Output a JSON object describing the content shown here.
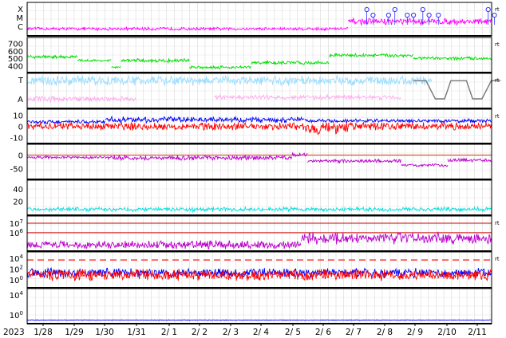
{
  "chart_data": {
    "type": "line",
    "x_start_label": "2023",
    "x_ticks": [
      "1/28",
      "1/29",
      "1/30",
      "1/31",
      "2/ 1",
      "2/ 2",
      "2/ 3",
      "2/ 4",
      "2/ 5",
      "2/ 6",
      "2/ 7",
      "2/ 8",
      "2/ 9",
      "2/10",
      "2/11"
    ],
    "x_range_days": [
      0,
      15.2
    ],
    "side_tag": "rt",
    "colors": {
      "magenta": "#ff00ff",
      "green": "#00dd00",
      "lightblue": "#99ddff",
      "pink": "#ffaaee",
      "gray": "#777777",
      "blue": "#0000ff",
      "red": "#ff0000",
      "purple": "#bb00cc",
      "cyan": "#00dddd",
      "darkred": "#cc0000",
      "flare_marker": "#3333ff"
    },
    "panels": [
      {
        "id": "xray_class",
        "y_labels": [
          "X",
          "M",
          "C"
        ],
        "tag": true,
        "series": [
          {
            "color_key": "magenta",
            "segments": [
              [
                0,
                10.3,
                0.18,
                0.06
              ],
              [
                10.3,
                15.2,
                0.42,
                0.12
              ]
            ]
          }
        ],
        "flare_markers_days": [
          10.9,
          11.1,
          11.6,
          11.8,
          12.2,
          12.4,
          12.7,
          12.9,
          13.2,
          14.8,
          15.0
        ]
      },
      {
        "id": "solar_wind_speed",
        "y_ticks": [
          700,
          600,
          500,
          400
        ],
        "ylim": [
          330,
          760
        ],
        "tag": true,
        "series": [
          {
            "color_key": "green",
            "segments": [
              [
                0,
                1.6,
                520,
                25
              ],
              [
                1.6,
                2.7,
                470,
                20
              ],
              [
                2.7,
                3.0,
                380,
                15
              ],
              [
                3.0,
                5.2,
                470,
                30
              ],
              [
                5.2,
                7.2,
                380,
                25
              ],
              [
                7.2,
                9.7,
                440,
                30
              ],
              [
                9.7,
                12.4,
                540,
                30
              ],
              [
                12.4,
                15.2,
                500,
                25
              ]
            ]
          }
        ]
      },
      {
        "id": "sector_polarity",
        "y_labels": [
          "T",
          "A"
        ],
        "tag": true,
        "series": [
          {
            "color_key": "lightblue",
            "segments": [
              [
                0,
                13.0,
                0.82,
                0.18
              ]
            ]
          },
          {
            "color_key": "pink",
            "segments": [
              [
                0,
                3.5,
                0.25,
                0.1
              ],
              [
                6.0,
                12.0,
                0.3,
                0.08
              ]
            ]
          },
          {
            "color_key": "gray",
            "polyline_days": [
              [
                12.4,
                0.82
              ],
              [
                12.8,
                0.82
              ],
              [
                13.1,
                0.25
              ],
              [
                13.4,
                0.25
              ],
              [
                13.6,
                0.82
              ],
              [
                14.1,
                0.82
              ],
              [
                14.3,
                0.25
              ],
              [
                14.6,
                0.25
              ],
              [
                14.9,
                0.82
              ],
              [
                15.2,
                0.82
              ]
            ]
          }
        ]
      },
      {
        "id": "imf",
        "y_ticks": [
          10,
          0,
          -10
        ],
        "ylim": [
          -14,
          14
        ],
        "tag": true,
        "series": [
          {
            "color_key": "blue",
            "segments": [
              [
                0,
                2.5,
                4,
                2
              ],
              [
                2.5,
                8.9,
                6,
                3
              ],
              [
                8.9,
                15.2,
                5,
                2
              ]
            ]
          },
          {
            "color_key": "red",
            "segments": [
              [
                0,
                8.9,
                0,
                4
              ],
              [
                8.9,
                10.3,
                -2,
                7
              ],
              [
                10.3,
                15.2,
                0,
                4
              ]
            ]
          }
        ]
      },
      {
        "id": "dst",
        "y_ticks": [
          0,
          -50
        ],
        "ylim": [
          -85,
          35
        ],
        "zero_line": true,
        "series": [
          {
            "color_key": "purple",
            "segments": [
              [
                0,
                2.5,
                -8,
                6
              ],
              [
                2.5,
                8.5,
                -10,
                10
              ],
              [
                8.5,
                9.0,
                2,
                8
              ],
              [
                9.0,
                12.0,
                -22,
                8
              ],
              [
                12.0,
                13.5,
                -38,
                6
              ],
              [
                13.5,
                15.2,
                -18,
                8
              ]
            ]
          }
        ]
      },
      {
        "id": "kp",
        "y_ticks": [
          40,
          20
        ],
        "ylim": [
          0,
          52
        ],
        "series": [
          {
            "color_key": "cyan",
            "segments": [
              [
                0,
                15.2,
                7,
                4
              ]
            ]
          }
        ]
      },
      {
        "id": "electron_flux",
        "y_ticks": [
          "10^7",
          "10^6"
        ],
        "log_range": [
          4.2,
          7.6
        ],
        "ref_lines": [
          7.0,
          6.0
        ],
        "tag": true,
        "series": [
          {
            "color_key": "purple",
            "segments": [
              [
                0,
                8.8,
                4.7,
                0.5
              ],
              [
                8.8,
                15.2,
                5.4,
                0.7
              ]
            ]
          }
        ]
      },
      {
        "id": "proton_flux",
        "y_ticks": [
          "10^4",
          "10^2",
          "10^0"
        ],
        "log_range": [
          -1.2,
          4.9
        ],
        "dashed_ref": 3.7,
        "tag": true,
        "series": [
          {
            "color_key": "blue",
            "segments": [
              [
                0,
                15.2,
                1.3,
                1.0
              ]
            ]
          },
          {
            "color_key": "red",
            "segments": [
              [
                0,
                15.2,
                0.9,
                1.2
              ]
            ]
          }
        ]
      },
      {
        "id": "neutron",
        "y_ticks": [
          "10^4",
          "10^0"
        ],
        "log_range": [
          -1.5,
          5.0
        ],
        "series": [
          {
            "color_key": "blue",
            "segments": [
              [
                0,
                15.2,
                -1.1,
                0.08
              ]
            ]
          }
        ]
      }
    ]
  }
}
